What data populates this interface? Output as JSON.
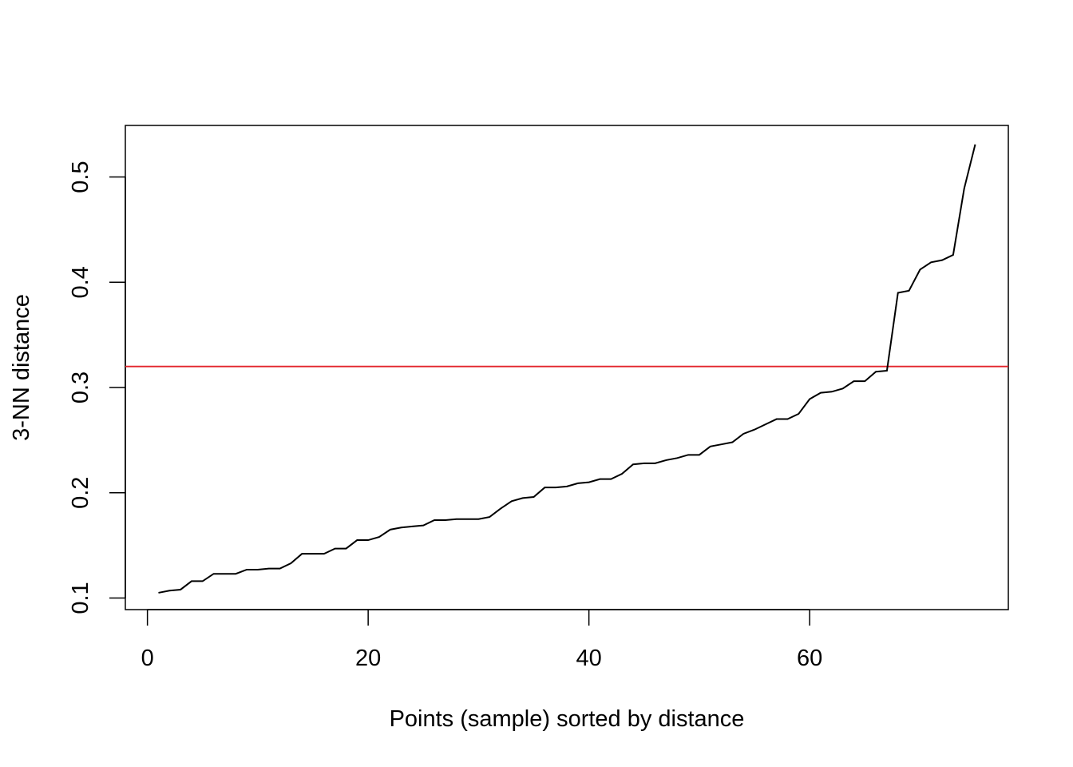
{
  "chart_data": {
    "type": "line",
    "title": "",
    "xlabel": "Points (sample) sorted by distance",
    "ylabel": "3-NN distance",
    "xlim": [
      -2,
      78
    ],
    "ylim": [
      0.089,
      0.549
    ],
    "x_ticks": [
      0,
      20,
      40,
      60
    ],
    "x_tick_labels": [
      "0",
      "20",
      "40",
      "60"
    ],
    "y_ticks": [
      0.1,
      0.2,
      0.3,
      0.4,
      0.5
    ],
    "y_tick_labels": [
      "0.1",
      "0.2",
      "0.3",
      "0.4",
      "0.5"
    ],
    "grid": false,
    "legend": "none",
    "line_color": "#000000",
    "reference_line": {
      "y": 0.32,
      "color": "#e3242b"
    },
    "series": [
      {
        "x": [
          1,
          2,
          3,
          4,
          5,
          6,
          7,
          8,
          9,
          10,
          11,
          12,
          13,
          14,
          15,
          16,
          17,
          18,
          19,
          20,
          21,
          22,
          23,
          24,
          25,
          26,
          27,
          28,
          29,
          30,
          31,
          32,
          33,
          34,
          35,
          36,
          37,
          38,
          39,
          40,
          41,
          42,
          43,
          44,
          45,
          46,
          47,
          48,
          49,
          50,
          51,
          52,
          53,
          54,
          55,
          56,
          57,
          58,
          59,
          60,
          61,
          62,
          63,
          64,
          65,
          66,
          67,
          68,
          69,
          70,
          71,
          72,
          73,
          74,
          75
        ],
        "values": [
          0.105,
          0.107,
          0.108,
          0.116,
          0.116,
          0.123,
          0.123,
          0.123,
          0.127,
          0.127,
          0.128,
          0.128,
          0.133,
          0.142,
          0.142,
          0.142,
          0.147,
          0.147,
          0.155,
          0.155,
          0.158,
          0.165,
          0.167,
          0.168,
          0.169,
          0.174,
          0.174,
          0.175,
          0.175,
          0.175,
          0.177,
          0.185,
          0.192,
          0.195,
          0.196,
          0.205,
          0.205,
          0.206,
          0.209,
          0.21,
          0.213,
          0.213,
          0.218,
          0.227,
          0.228,
          0.228,
          0.231,
          0.233,
          0.236,
          0.236,
          0.244,
          0.246,
          0.248,
          0.256,
          0.26,
          0.265,
          0.27,
          0.27,
          0.275,
          0.289,
          0.295,
          0.296,
          0.299,
          0.306,
          0.306,
          0.315,
          0.316,
          0.39,
          0.392,
          0.412,
          0.419,
          0.421,
          0.426,
          0.489,
          0.531
        ]
      }
    ]
  }
}
